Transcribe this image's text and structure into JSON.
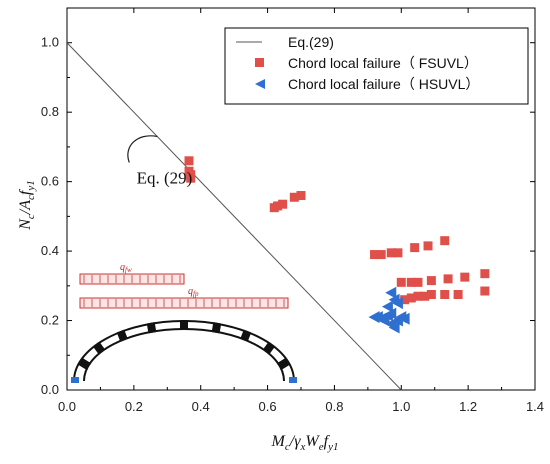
{
  "chart_data": {
    "type": "scatter",
    "title": "",
    "xlabel": "Mc/γxWe fy1",
    "ylabel": "Nc/Ac fy1",
    "xlabel_parts": [
      {
        "t": "M",
        "sub": false
      },
      {
        "t": "c",
        "sub": true
      },
      {
        "t": "/γ",
        "sub": false
      },
      {
        "t": "x",
        "sub": true
      },
      {
        "t": "W",
        "sub": false
      },
      {
        "t": "e",
        "sub": true
      },
      {
        "t": "f",
        "sub": false
      },
      {
        "t": "y1",
        "sub": true
      }
    ],
    "ylabel_parts": [
      {
        "t": "N",
        "sub": false
      },
      {
        "t": "c",
        "sub": true
      },
      {
        "t": "/A",
        "sub": false
      },
      {
        "t": "c",
        "sub": true
      },
      {
        "t": "f",
        "sub": false
      },
      {
        "t": "y1",
        "sub": true
      }
    ],
    "xlim": [
      0.0,
      1.4
    ],
    "ylim": [
      0.0,
      1.1
    ],
    "xticks": [
      "0.0",
      "0.2",
      "0.4",
      "0.6",
      "0.8",
      "1.0",
      "1.2",
      "1.4"
    ],
    "yticks": [
      "0.0",
      "0.2",
      "0.4",
      "0.6",
      "0.8",
      "1.0"
    ],
    "grid": false,
    "legend_position": "top-right",
    "series": [
      {
        "name": "Eq.(29)",
        "kind": "line",
        "color": "#555555",
        "points": [
          [
            0.0,
            1.0
          ],
          [
            1.0,
            0.0
          ]
        ]
      },
      {
        "name": "Chord local failure（ FSUVL）",
        "kind": "scatter",
        "marker": "square",
        "color": "#e0504b",
        "points": [
          [
            0.365,
            0.66
          ],
          [
            0.365,
            0.63
          ],
          [
            0.37,
            0.62
          ],
          [
            0.37,
            0.61
          ],
          [
            0.62,
            0.525
          ],
          [
            0.63,
            0.53
          ],
          [
            0.645,
            0.535
          ],
          [
            0.68,
            0.555
          ],
          [
            0.7,
            0.56
          ],
          [
            0.92,
            0.39
          ],
          [
            0.94,
            0.39
          ],
          [
            0.97,
            0.395
          ],
          [
            0.99,
            0.395
          ],
          [
            1.04,
            0.41
          ],
          [
            1.08,
            0.415
          ],
          [
            1.13,
            0.43
          ],
          [
            1.0,
            0.31
          ],
          [
            1.03,
            0.31
          ],
          [
            1.05,
            0.31
          ],
          [
            1.09,
            0.315
          ],
          [
            1.14,
            0.32
          ],
          [
            1.19,
            0.325
          ],
          [
            1.25,
            0.335
          ],
          [
            1.01,
            0.26
          ],
          [
            1.03,
            0.265
          ],
          [
            1.05,
            0.27
          ],
          [
            1.07,
            0.27
          ],
          [
            1.09,
            0.275
          ],
          [
            1.13,
            0.275
          ],
          [
            1.17,
            0.275
          ],
          [
            1.25,
            0.285
          ]
        ]
      },
      {
        "name": "Chord local failure（ HSUVL）",
        "kind": "scatter",
        "marker": "triangle-left",
        "color": "#2f6fd0",
        "points": [
          [
            0.97,
            0.28
          ],
          [
            0.98,
            0.26
          ],
          [
            0.99,
            0.25
          ],
          [
            0.96,
            0.24
          ],
          [
            0.92,
            0.21
          ],
          [
            0.93,
            0.21
          ],
          [
            0.94,
            0.205
          ],
          [
            0.95,
            0.2
          ],
          [
            0.96,
            0.215
          ],
          [
            0.97,
            0.22
          ],
          [
            0.97,
            0.19
          ],
          [
            0.98,
            0.18
          ],
          [
            0.99,
            0.2
          ],
          [
            1.0,
            0.21
          ],
          [
            1.01,
            0.205
          ]
        ]
      }
    ],
    "annotations": [
      {
        "text": "Eq. (29)",
        "x": 0.25,
        "y": 0.595
      }
    ],
    "inset": {
      "label_top": "qfw",
      "label_mid": "qfp",
      "label_top_main": "q",
      "label_top_sub": "fw",
      "label_mid_main": "q",
      "label_mid_sub": "fp"
    }
  }
}
